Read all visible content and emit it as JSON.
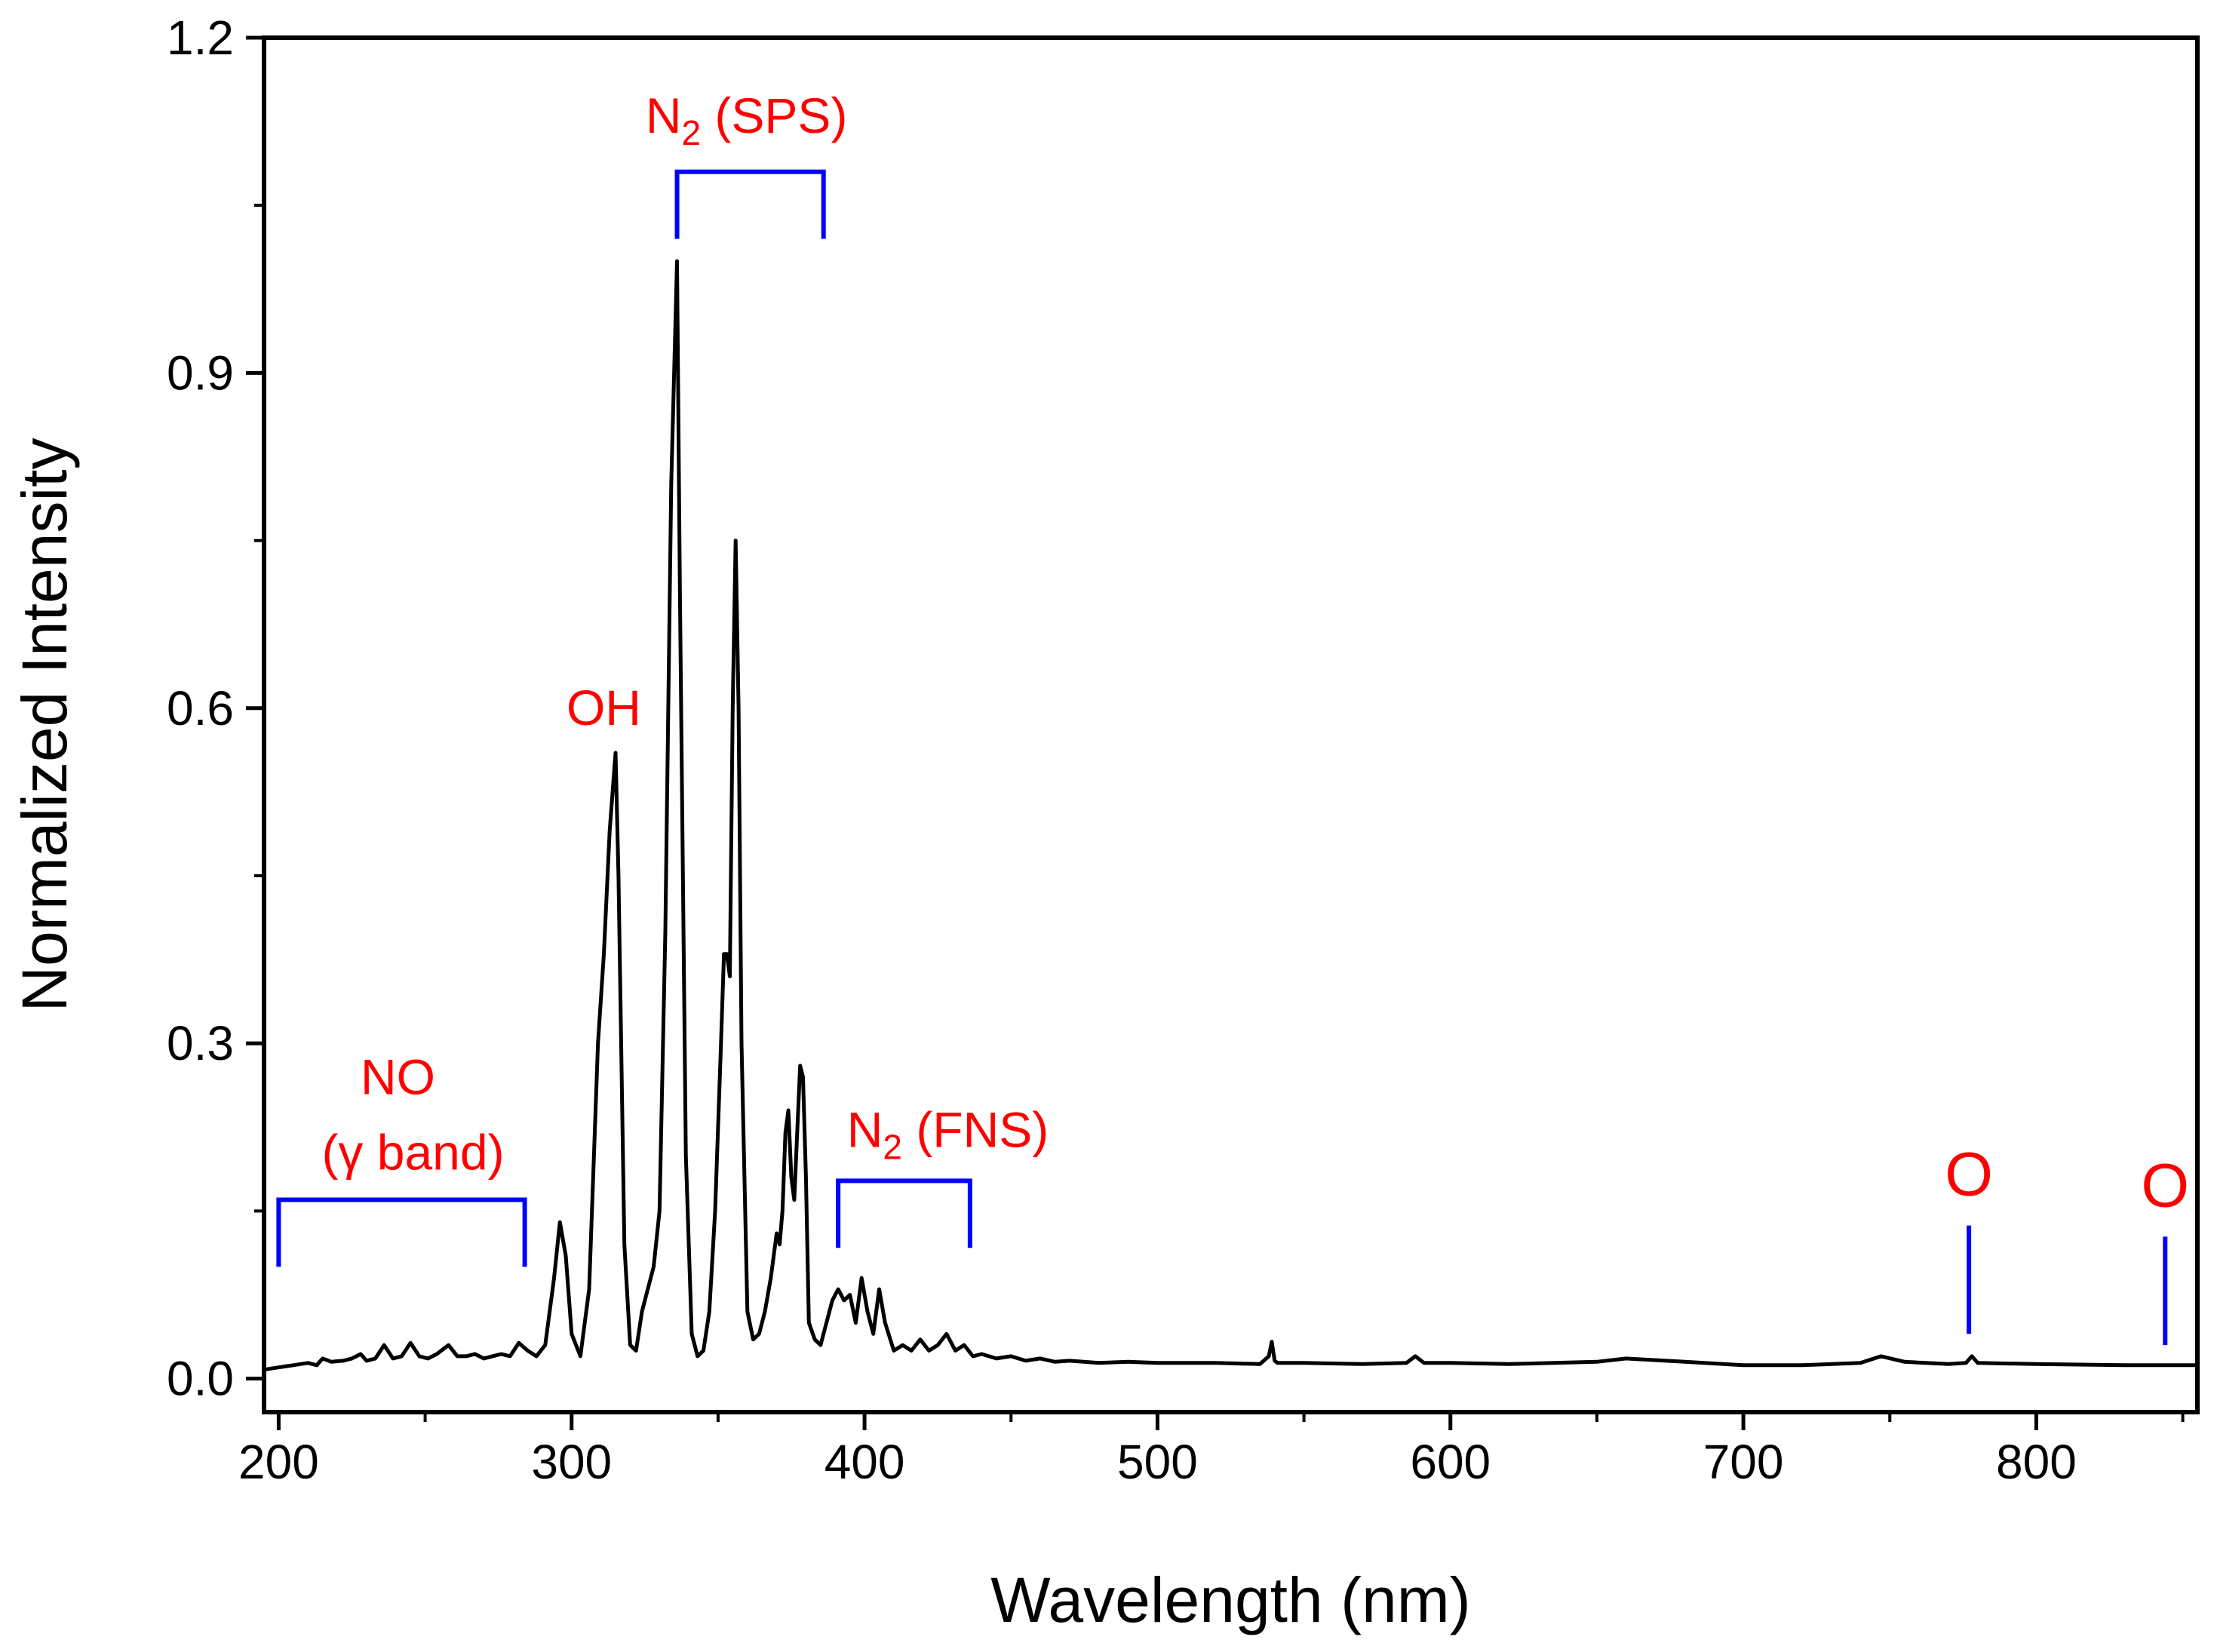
{
  "chart_data": {
    "type": "line",
    "title": "",
    "xlabel": "Wavelength (nm)",
    "ylabel": "Normalized Intensity",
    "xlim": [
      195,
      855
    ],
    "ylim": [
      -0.03,
      1.2
    ],
    "xticks": [
      200,
      300,
      400,
      500,
      600,
      700,
      800
    ],
    "xtick_labels": [
      "200",
      "300",
      "400",
      "500",
      "600",
      "700",
      "800"
    ],
    "yticks": [
      0.0,
      0.3,
      0.6,
      0.9,
      1.2
    ],
    "ytick_labels": [
      "0.0",
      "0.3",
      "0.6",
      "0.9",
      "1.2"
    ],
    "grid": false,
    "series": [
      {
        "name": "Normalized Intensity",
        "color": "#000000",
        "x": [
          195,
          200,
          205,
          210,
          213,
          215,
          218,
          222,
          225,
          228,
          230,
          233,
          236,
          239,
          242,
          245,
          248,
          251,
          254,
          258,
          261,
          264,
          267,
          270,
          273,
          276,
          279,
          282,
          285,
          288,
          291,
          294,
          296,
          298,
          300,
          303,
          306,
          309,
          311,
          313,
          315,
          316,
          318,
          320,
          322,
          324,
          326,
          328,
          330,
          332,
          334,
          336,
          337,
          339,
          341,
          343,
          345,
          347,
          349,
          351,
          352,
          353,
          354,
          355,
          356,
          357,
          358,
          360,
          362,
          364,
          366,
          368,
          370,
          371,
          372,
          373,
          374,
          375,
          376,
          377,
          378,
          379,
          380,
          381,
          383,
          385,
          387,
          389,
          391,
          393,
          395,
          397,
          399,
          401,
          403,
          405,
          407,
          410,
          413,
          416,
          419,
          422,
          425,
          428,
          431,
          434,
          437,
          440,
          445,
          450,
          455,
          460,
          465,
          470,
          480,
          490,
          500,
          520,
          535,
          538,
          539,
          540,
          541,
          542,
          550,
          570,
          585,
          588,
          591,
          600,
          620,
          650,
          660,
          680,
          700,
          720,
          740,
          747,
          755,
          770,
          776,
          778,
          780,
          800,
          830,
          845,
          855
        ],
        "y": [
          0.008,
          0.01,
          0.012,
          0.014,
          0.012,
          0.018,
          0.015,
          0.016,
          0.018,
          0.022,
          0.016,
          0.018,
          0.03,
          0.018,
          0.02,
          0.032,
          0.02,
          0.018,
          0.022,
          0.03,
          0.02,
          0.02,
          0.022,
          0.018,
          0.02,
          0.022,
          0.02,
          0.032,
          0.025,
          0.02,
          0.03,
          0.09,
          0.14,
          0.11,
          0.04,
          0.02,
          0.08,
          0.3,
          0.38,
          0.49,
          0.56,
          0.45,
          0.12,
          0.03,
          0.025,
          0.06,
          0.08,
          0.1,
          0.15,
          0.4,
          0.8,
          1.0,
          0.7,
          0.2,
          0.04,
          0.02,
          0.025,
          0.06,
          0.15,
          0.3,
          0.38,
          0.38,
          0.36,
          0.6,
          0.75,
          0.6,
          0.3,
          0.06,
          0.035,
          0.04,
          0.06,
          0.09,
          0.13,
          0.12,
          0.15,
          0.22,
          0.24,
          0.18,
          0.16,
          0.22,
          0.28,
          0.27,
          0.18,
          0.05,
          0.035,
          0.03,
          0.05,
          0.07,
          0.08,
          0.07,
          0.075,
          0.05,
          0.09,
          0.06,
          0.04,
          0.08,
          0.05,
          0.025,
          0.03,
          0.025,
          0.035,
          0.025,
          0.03,
          0.04,
          0.025,
          0.03,
          0.02,
          0.022,
          0.018,
          0.02,
          0.016,
          0.018,
          0.015,
          0.016,
          0.014,
          0.015,
          0.014,
          0.014,
          0.013,
          0.02,
          0.033,
          0.016,
          0.014,
          0.014,
          0.014,
          0.013,
          0.014,
          0.02,
          0.014,
          0.014,
          0.013,
          0.015,
          0.018,
          0.015,
          0.012,
          0.012,
          0.014,
          0.02,
          0.015,
          0.013,
          0.014,
          0.02,
          0.014,
          0.013,
          0.012,
          0.012,
          0.012
        ]
      }
    ],
    "annotations": [
      {
        "id": "n2-sps",
        "label": "N",
        "subscript": "2",
        "suffix": " (SPS)",
        "x_range": [
          336,
          386
        ],
        "bracket_y": 1.08,
        "bracket_bottom_y": 1.02
      },
      {
        "id": "oh",
        "label": "OH",
        "x": 311,
        "y": 0.6
      },
      {
        "id": "no-gamma",
        "label_line1": "NO",
        "label_line2": "(γ band)",
        "x_range": [
          200,
          284
        ],
        "bracket_y": 0.16,
        "bracket_bottom_y": 0.1
      },
      {
        "id": "n2-fns",
        "label": "N",
        "subscript": "2",
        "suffix": " (FNS)",
        "x_range": [
          391,
          436
        ],
        "bracket_y": 0.177,
        "bracket_bottom_y": 0.117
      },
      {
        "id": "o-777",
        "label": "O",
        "x": 777,
        "line_top_y": 0.137,
        "line_bottom_y": 0.04
      },
      {
        "id": "o-844",
        "label": "O",
        "x": 844,
        "line_top_y": 0.127,
        "line_bottom_y": 0.03
      }
    ],
    "annotation_text_color": "#ff0000",
    "annotation_line_color": "#0000ff"
  }
}
